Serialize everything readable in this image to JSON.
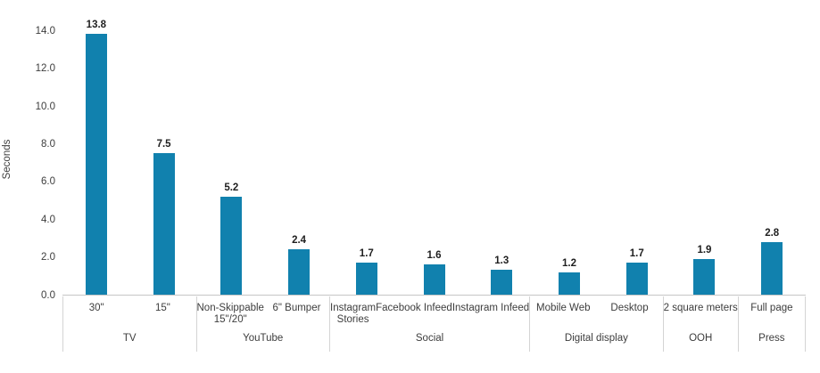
{
  "chart_data": {
    "type": "bar",
    "title": "",
    "xlabel": "",
    "ylabel": "Seconds",
    "ylim": [
      0,
      14
    ],
    "yticks": [
      "0.0",
      "2.0",
      "4.0",
      "6.0",
      "8.0",
      "10.0",
      "12.0",
      "14.0"
    ],
    "grid": false,
    "legend": false,
    "bar_color": "#1181ae",
    "value_label_decimals": 1,
    "groups": [
      {
        "label": "TV",
        "bars": [
          {
            "label": "30\"",
            "value": 13.8
          },
          {
            "label": "15\"",
            "value": 7.5
          }
        ]
      },
      {
        "label": "YouTube",
        "bars": [
          {
            "label": "Non-Skippable\n15\"/20\"",
            "value": 5.2
          },
          {
            "label": "6\" Bumper",
            "value": 2.4
          }
        ]
      },
      {
        "label": "Social",
        "bars": [
          {
            "label": "Instagram\nStories",
            "value": 1.7
          },
          {
            "label": "Facebook Infeed",
            "value": 1.6
          },
          {
            "label": "Instagram Infeed",
            "value": 1.3
          }
        ]
      },
      {
        "label": "Digital display",
        "bars": [
          {
            "label": "Mobile Web",
            "value": 1.2
          },
          {
            "label": "Desktop",
            "value": 1.7
          }
        ]
      },
      {
        "label": "OOH",
        "bars": [
          {
            "label": "2 square meters",
            "value": 1.9
          }
        ]
      },
      {
        "label": "Press",
        "bars": [
          {
            "label": "Full page",
            "value": 2.8
          }
        ]
      }
    ],
    "categories": [
      "30\"",
      "15\"",
      "Non-Skippable 15\"/20\"",
      "6\" Bumper",
      "Instagram Stories",
      "Facebook Infeed",
      "Instagram Infeed",
      "Mobile Web",
      "Desktop",
      "2 square meters",
      "Full page"
    ],
    "values": [
      13.8,
      7.5,
      5.2,
      2.4,
      1.7,
      1.6,
      1.3,
      1.2,
      1.7,
      1.9,
      2.8
    ]
  }
}
